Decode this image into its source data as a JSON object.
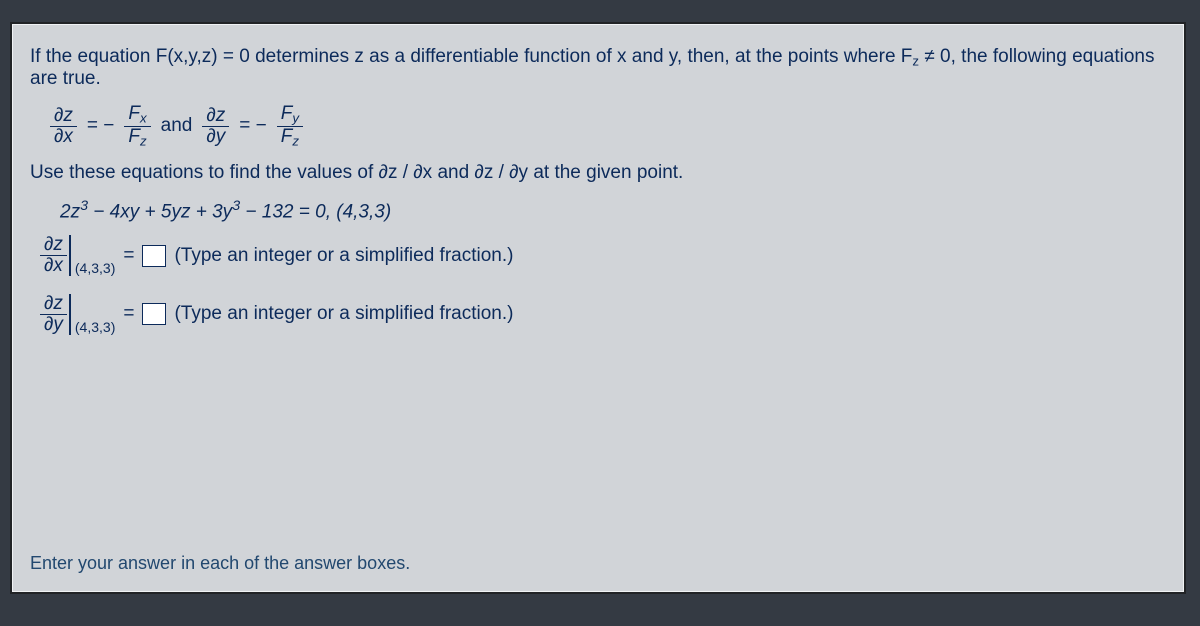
{
  "problem": {
    "intro_pre": "If the equation F(x,y,z) = 0 determines z as a differentiable function of x and y, then, at the points where F",
    "intro_sub": "z",
    "intro_post": " ≠ 0, the following equations are true.",
    "frac1_num": "∂z",
    "frac1_den": "∂x",
    "eq_sym": "= −",
    "fx_num_pref": "F",
    "fx_num_sub": "x",
    "fz_den_pref": "F",
    "fz_den_sub": "z",
    "and": "and",
    "frac2_num": "∂z",
    "frac2_den": "∂y",
    "fy_num_pref": "F",
    "fy_num_sub": "y",
    "instruction": "Use these equations to find the values of ∂z / ∂x and ∂z / ∂y at the given point.",
    "equation_a": "2z",
    "equation_b": " − 4xy + 5yz + 3y",
    "equation_c": " − 132 = 0, (4,3,3)",
    "exp3": "3"
  },
  "answers": {
    "dzdx_num": "∂z",
    "dzdx_den": "∂x",
    "point1": "(4,3,3)",
    "equals": "=",
    "hint1": "(Type an integer or a simplified fraction.)",
    "dzdy_num": "∂z",
    "dzdy_den": "∂y",
    "point2": "(4,3,3)",
    "hint2": "(Type an integer or a simplified fraction.)",
    "value1": "",
    "value2": ""
  },
  "footer": {
    "text": "Enter your answer in each of the answer boxes."
  },
  "style": {
    "panel_bg": "#d1d4d8",
    "text_color": "#0c2a5a",
    "border_color": "#212326",
    "page_bg": "#343a43"
  }
}
